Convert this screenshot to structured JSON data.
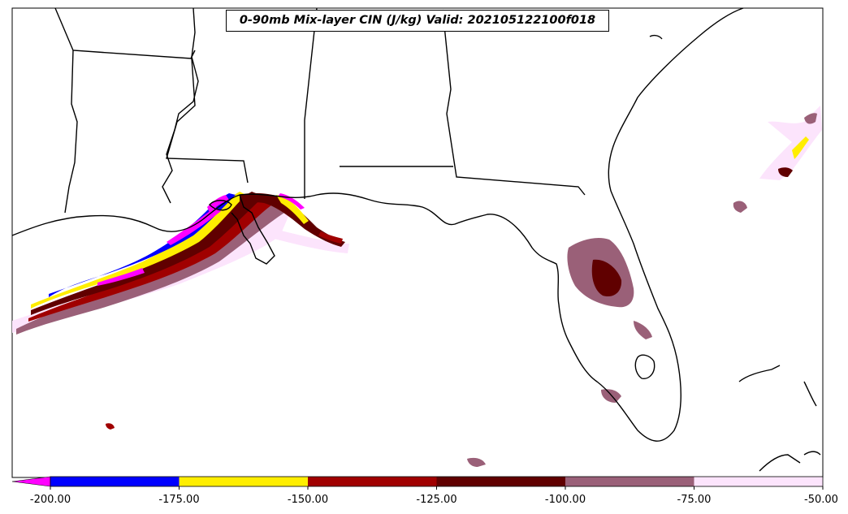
{
  "title": "0-90mb Mix-layer CIN (J/kg) Valid: 202105122100f018",
  "colorbar": {
    "tick_labels": [
      "-200.00",
      "-175.00",
      "-150.00",
      "-125.00",
      "-100.00",
      "-75.00",
      "-50.00"
    ],
    "extend": "min",
    "extension_color": "#ff00ff",
    "colors": [
      "#0000ff",
      "#ffee00",
      "#a00000",
      "#600000",
      "#9a6078",
      "#fce4fc"
    ]
  },
  "colors": {
    "coastline": "#000000",
    "background": "#ffffff"
  }
}
